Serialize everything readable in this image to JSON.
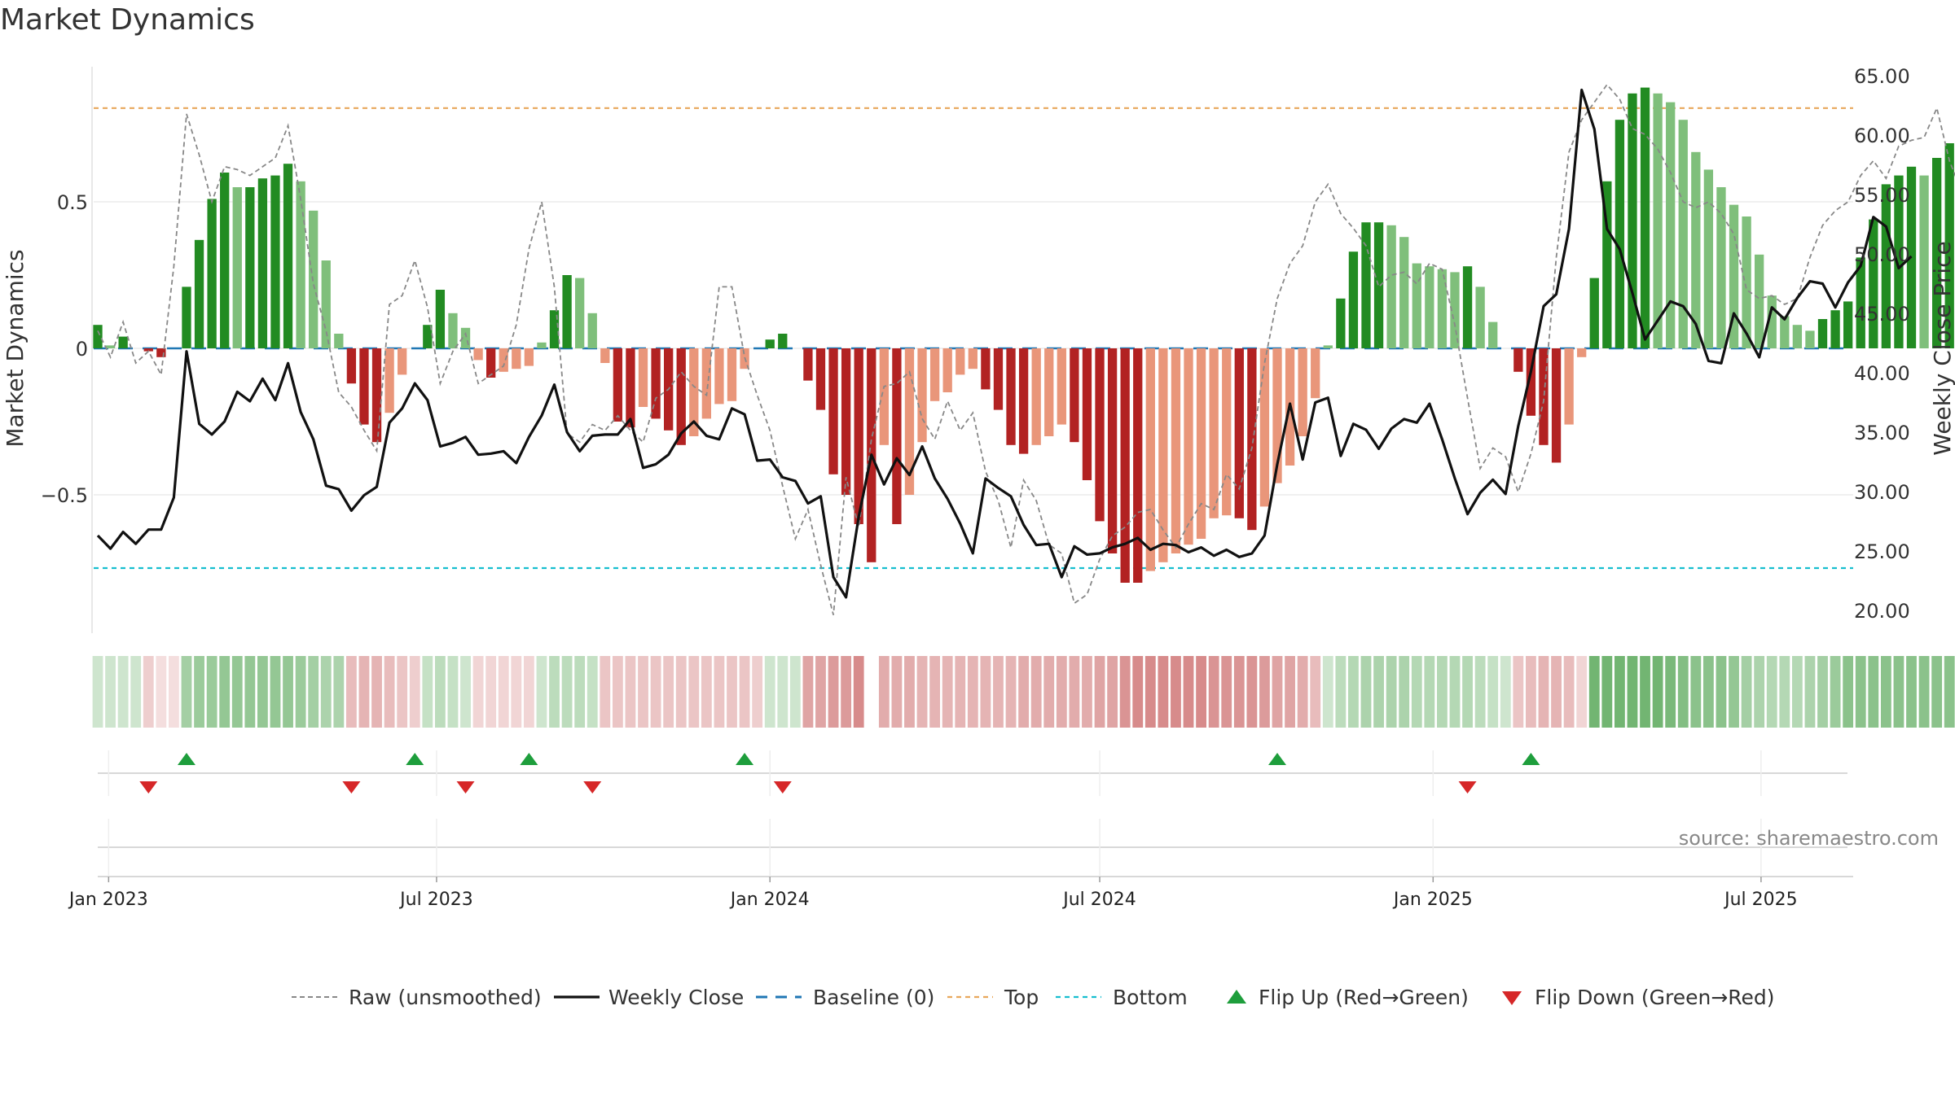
{
  "title": "Market Dynamics",
  "source": "source: sharemaestro.com",
  "chart_data": {
    "type": "bar",
    "start_date": "2022-12-26",
    "interval": "weekly",
    "y_left": {
      "label": "Market Dynamics",
      "range": [
        -0.95,
        0.95
      ],
      "ticks": [
        0.5,
        0,
        -0.5
      ],
      "tick_labels": [
        "0.5",
        "0",
        "−0.5"
      ]
    },
    "y_right": {
      "label": "Weekly Close Price",
      "range": [
        18.5,
        66.0
      ],
      "ticks": [
        20,
        25,
        30,
        35,
        40,
        45,
        50,
        55,
        60,
        65
      ],
      "tick_labels": [
        "20.00",
        "25.00",
        "30.00",
        "35.00",
        "40.00",
        "45.00",
        "50.00",
        "55.00",
        "60.00",
        "65.00"
      ]
    },
    "x_axis": {
      "tick_dates": [
        "2023-01-01",
        "2023-07-01",
        "2024-01-01",
        "2024-07-01",
        "2025-01-01",
        "2025-07-01"
      ],
      "tick_labels": [
        "Jan 2023",
        "Jul 2023",
        "Jan 2024",
        "Jul 2024",
        "Jan 2025",
        "Jul 2025"
      ]
    },
    "levels": {
      "top": 0.82,
      "bottom": -0.75,
      "baseline": 0
    },
    "colors": {
      "strong_green": "#228b22",
      "light_green": "#7fbf7b",
      "strong_red": "#b22222",
      "light_red": "#e9967a",
      "close": "#111111",
      "raw": "#888888",
      "baseline": "#1f77b4",
      "top": "#e8a85c",
      "bottom": "#17becf",
      "flip_up": "#1e9e3c",
      "flip_down": "#d62728"
    },
    "dynamics": [
      0.08,
      0.01,
      0.04,
      0,
      -0.01,
      -0.03,
      0,
      0.21,
      0.37,
      0.51,
      0.6,
      0.55,
      0.55,
      0.58,
      0.59,
      0.63,
      0.57,
      0.47,
      0.3,
      0.05,
      -0.12,
      -0.26,
      -0.32,
      -0.22,
      -0.09,
      0,
      0.08,
      0.2,
      0.12,
      0.07,
      -0.04,
      -0.1,
      -0.08,
      -0.07,
      -0.06,
      0.02,
      0.13,
      0.25,
      0.24,
      0.12,
      -0.05,
      -0.25,
      -0.27,
      -0.2,
      -0.24,
      -0.28,
      -0.33,
      -0.3,
      -0.24,
      -0.19,
      -0.18,
      -0.07,
      0,
      0.03,
      0.05,
      0,
      -0.11,
      -0.21,
      -0.43,
      -0.5,
      -0.6,
      -0.73,
      -0.33,
      -0.6,
      -0.5,
      -0.32,
      -0.18,
      -0.15,
      -0.09,
      -0.07,
      -0.14,
      -0.21,
      -0.33,
      -0.36,
      -0.33,
      -0.3,
      -0.26,
      -0.32,
      -0.45,
      -0.59,
      -0.7,
      -0.8,
      -0.8,
      -0.76,
      -0.73,
      -0.7,
      -0.67,
      -0.65,
      -0.58,
      -0.57,
      -0.58,
      -0.62,
      -0.54,
      -0.46,
      -0.4,
      -0.3,
      -0.17,
      0.01,
      0.17,
      0.33,
      0.43,
      0.43,
      0.42,
      0.38,
      0.29,
      0.28,
      0.27,
      0.26,
      0.28,
      0.21,
      0.09,
      0,
      -0.08,
      -0.23,
      -0.33,
      -0.39,
      -0.26,
      -0.03,
      0.24,
      0.57,
      0.78,
      0.87,
      0.89,
      0.87,
      0.84,
      0.78,
      0.67,
      0.61,
      0.55,
      0.49,
      0.45,
      0.32,
      0.18,
      0.11,
      0.08,
      0.06,
      0.1,
      0.13,
      0.16,
      0.31,
      0.44,
      0.56,
      0.59,
      0.62,
      0.59,
      0.65,
      0.7,
      0.65,
      0.64
    ],
    "weekly_close": [
      26.3,
      25.2,
      26.6,
      25.6,
      26.8,
      26.8,
      29.5,
      41.8,
      35.7,
      34.8,
      35.9,
      38.4,
      37.6,
      39.5,
      37.7,
      40.8,
      36.7,
      34.4,
      30.5,
      30.2,
      28.4,
      29.7,
      30.4,
      35.8,
      37.0,
      39.1,
      37.7,
      33.8,
      34.1,
      34.6,
      33.1,
      33.2,
      33.4,
      32.4,
      34.6,
      36.4,
      39.0,
      35.0,
      33.4,
      34.7,
      34.8,
      34.8,
      36.1,
      32.0,
      32.3,
      33.1,
      34.9,
      35.9,
      34.7,
      34.4,
      37.0,
      36.5,
      32.6,
      32.7,
      31.2,
      30.9,
      29.0,
      29.6,
      22.8,
      21.1,
      27.9,
      33.1,
      30.6,
      32.8,
      31.4,
      33.8,
      31.1,
      29.4,
      27.3,
      24.8,
      31.1,
      30.3,
      29.6,
      27.2,
      25.5,
      25.6,
      22.8,
      25.4,
      24.7,
      24.8,
      25.3,
      25.6,
      26.1,
      25.1,
      25.6,
      25.5,
      24.9,
      25.3,
      24.6,
      25.1,
      24.5,
      24.8,
      26.3,
      32.3,
      37.4,
      32.7,
      37.5,
      37.9,
      33.0,
      35.7,
      35.2,
      33.6,
      35.3,
      36.1,
      35.8,
      37.4,
      34.4,
      31.1,
      28.1,
      29.9,
      31.0,
      29.8,
      35.5,
      40.1,
      45.6,
      46.6,
      52.1,
      63.8,
      60.5,
      52.1,
      50.4,
      46.7,
      42.8,
      44.4,
      46.0,
      45.6,
      44.1,
      41.0,
      40.8,
      45.0,
      43.3,
      41.3,
      45.5,
      44.5,
      46.3,
      47.7,
      47.5,
      45.5,
      47.6,
      49.0,
      53.1,
      52.3,
      48.8,
      49.8
    ],
    "raw_unsmoothed": [
      0.06,
      -0.03,
      0.09,
      -0.05,
      -0.01,
      -0.09,
      0.28,
      0.8,
      0.66,
      0.5,
      0.62,
      0.61,
      0.59,
      0.62,
      0.65,
      0.76,
      0.51,
      0.22,
      0.06,
      -0.15,
      -0.2,
      -0.28,
      -0.35,
      0.15,
      0.18,
      0.3,
      0.14,
      -0.12,
      -0.01,
      0.05,
      -0.12,
      -0.09,
      -0.06,
      0.08,
      0.34,
      0.5,
      0.21,
      -0.29,
      -0.32,
      -0.26,
      -0.28,
      -0.23,
      -0.28,
      -0.32,
      -0.17,
      -0.14,
      -0.08,
      -0.13,
      -0.16,
      0.21,
      0.21,
      -0.03,
      -0.16,
      -0.28,
      -0.47,
      -0.65,
      -0.55,
      -0.74,
      -0.91,
      -0.44,
      -0.61,
      -0.31,
      -0.13,
      -0.12,
      -0.08,
      -0.24,
      -0.31,
      -0.18,
      -0.28,
      -0.22,
      -0.42,
      -0.52,
      -0.68,
      -0.45,
      -0.52,
      -0.67,
      -0.7,
      -0.87,
      -0.84,
      -0.72,
      -0.64,
      -0.61,
      -0.56,
      -0.55,
      -0.62,
      -0.68,
      -0.6,
      -0.53,
      -0.55,
      -0.43,
      -0.48,
      -0.34,
      -0.05,
      0.17,
      0.29,
      0.35,
      0.5,
      0.56,
      0.46,
      0.41,
      0.35,
      0.21,
      0.25,
      0.26,
      0.22,
      0.29,
      0.27,
      0.08,
      -0.17,
      -0.41,
      -0.34,
      -0.37,
      -0.49,
      -0.36,
      -0.18,
      0.31,
      0.67,
      0.78,
      0.84,
      0.9,
      0.85,
      0.75,
      0.73,
      0.68,
      0.6,
      0.5,
      0.48,
      0.5,
      0.46,
      0.39,
      0.2,
      0.17,
      0.18,
      0.15,
      0.17,
      0.31,
      0.42,
      0.47,
      0.5,
      0.59,
      0.64,
      0.58,
      0.69,
      0.71,
      0.72,
      0.82,
      0.64,
      0.53,
      0.63
    ],
    "regime_intensity": [
      0.3,
      0.3,
      0.3,
      0.3,
      0.3,
      0.2,
      0.2,
      0.55,
      0.6,
      0.6,
      0.65,
      0.65,
      0.65,
      0.65,
      0.65,
      0.65,
      0.6,
      0.55,
      0.5,
      0.5,
      0.4,
      0.45,
      0.45,
      0.4,
      0.35,
      0.3,
      0.35,
      0.4,
      0.35,
      0.3,
      0.25,
      0.25,
      0.25,
      0.25,
      0.25,
      0.3,
      0.4,
      0.4,
      0.4,
      0.35,
      0.35,
      0.35,
      0.35,
      0.35,
      0.35,
      0.35,
      0.35,
      0.35,
      0.35,
      0.35,
      0.35,
      0.35,
      0.3,
      0.3,
      0.3,
      0.3,
      0.55,
      0.55,
      0.6,
      0.6,
      0.7,
      0.0,
      0.5,
      0.5,
      0.5,
      0.45,
      0.45,
      0.45,
      0.45,
      0.45,
      0.45,
      0.45,
      0.45,
      0.5,
      0.5,
      0.5,
      0.5,
      0.5,
      0.5,
      0.55,
      0.55,
      0.65,
      0.7,
      0.7,
      0.7,
      0.7,
      0.7,
      0.7,
      0.65,
      0.65,
      0.65,
      0.65,
      0.6,
      0.55,
      0.55,
      0.5,
      0.4,
      0.3,
      0.4,
      0.45,
      0.5,
      0.5,
      0.5,
      0.5,
      0.45,
      0.45,
      0.45,
      0.45,
      0.45,
      0.4,
      0.35,
      0.3,
      0.35,
      0.4,
      0.45,
      0.45,
      0.4,
      0.25,
      0.85,
      0.85,
      0.85,
      0.85,
      0.85,
      0.85,
      0.8,
      0.75,
      0.7,
      0.7,
      0.7,
      0.65,
      0.55,
      0.5,
      0.45,
      0.45,
      0.45,
      0.5,
      0.55,
      0.6,
      0.7,
      0.7,
      0.7,
      0.7,
      0.7,
      0.7,
      0.7,
      0.7,
      0.7,
      0.7,
      0.7
    ],
    "flips_up_weeks": [
      7,
      25,
      34,
      51,
      93,
      113
    ],
    "flips_down_weeks": [
      4,
      20,
      29,
      39,
      54,
      108
    ],
    "legend": [
      "Raw (unsmoothed)",
      "Weekly Close",
      "Baseline (0)",
      "Top",
      "Bottom",
      "Flip Up (Red→Green)",
      "Flip Down (Green→Red)"
    ]
  }
}
